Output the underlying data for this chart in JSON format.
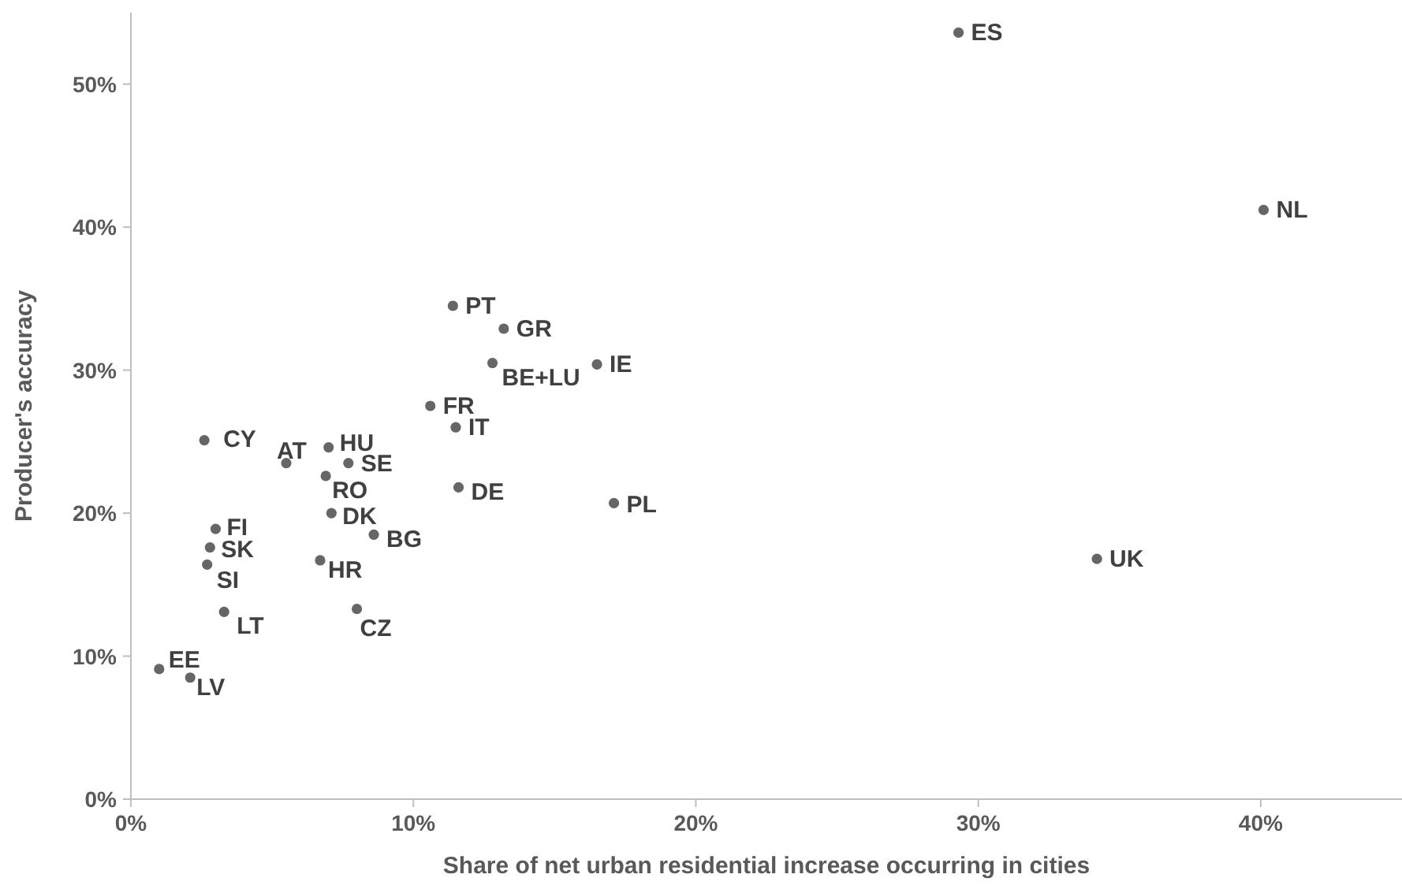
{
  "chart_data": {
    "type": "scatter",
    "xlabel": "Share of net urban residential increase occurring in cities",
    "ylabel": "Producer's accuracy",
    "xlim": [
      0,
      45
    ],
    "ylim": [
      0,
      55
    ],
    "xticks": [
      {
        "value": 0,
        "label": "0%"
      },
      {
        "value": 10,
        "label": "10%"
      },
      {
        "value": 20,
        "label": "20%"
      },
      {
        "value": 30,
        "label": "30%"
      },
      {
        "value": 40,
        "label": "40%"
      }
    ],
    "yticks": [
      {
        "value": 0,
        "label": "0%"
      },
      {
        "value": 10,
        "label": "10%"
      },
      {
        "value": 20,
        "label": "20%"
      },
      {
        "value": 30,
        "label": "30%"
      },
      {
        "value": 40,
        "label": "40%"
      },
      {
        "value": 50,
        "label": "50%"
      }
    ],
    "grid": false,
    "marker": "circle",
    "series": [
      {
        "color": "#666666",
        "x": [
          29.3,
          40.1,
          11.4,
          13.2,
          12.8,
          16.5,
          10.6,
          11.5,
          2.6,
          5.5,
          7.0,
          7.7,
          6.9,
          11.6,
          17.1,
          7.1,
          3.0,
          8.6,
          2.8,
          6.7,
          34.2,
          2.7,
          3.3,
          8.0,
          1.0,
          2.1
        ],
        "values": [
          53.6,
          41.2,
          34.5,
          32.9,
          30.5,
          30.4,
          27.5,
          26.0,
          25.1,
          23.5,
          24.6,
          23.5,
          22.6,
          21.8,
          20.7,
          20.0,
          18.9,
          18.5,
          17.6,
          16.7,
          16.8,
          16.4,
          13.1,
          13.3,
          9.1,
          8.5
        ]
      }
    ],
    "annotations": [
      {
        "text": "ES",
        "x": 29.3,
        "y": 53.6
      },
      {
        "text": "NL",
        "x": 40.1,
        "y": 41.2
      },
      {
        "text": "PT",
        "x": 11.4,
        "y": 34.5
      },
      {
        "text": "GR",
        "x": 13.2,
        "y": 32.9
      },
      {
        "text": "BE+LU",
        "x": 12.8,
        "y": 30.5
      },
      {
        "text": "IE",
        "x": 16.5,
        "y": 30.4
      },
      {
        "text": "FR",
        "x": 10.6,
        "y": 27.5
      },
      {
        "text": "IT",
        "x": 11.5,
        "y": 26.0
      },
      {
        "text": "CY",
        "x": 2.6,
        "y": 25.1
      },
      {
        "text": "AT",
        "x": 5.5,
        "y": 23.5
      },
      {
        "text": "HU",
        "x": 7.0,
        "y": 24.6
      },
      {
        "text": "SE",
        "x": 7.7,
        "y": 23.5
      },
      {
        "text": "RO",
        "x": 6.9,
        "y": 22.6
      },
      {
        "text": "DE",
        "x": 11.6,
        "y": 21.8
      },
      {
        "text": "PL",
        "x": 17.1,
        "y": 20.7
      },
      {
        "text": "DK",
        "x": 7.1,
        "y": 20.0
      },
      {
        "text": "FI",
        "x": 3.0,
        "y": 18.9
      },
      {
        "text": "BG",
        "x": 8.6,
        "y": 18.5
      },
      {
        "text": "SK",
        "x": 2.8,
        "y": 17.6
      },
      {
        "text": "HR",
        "x": 6.7,
        "y": 16.7
      },
      {
        "text": "UK",
        "x": 34.2,
        "y": 16.8
      },
      {
        "text": "SI",
        "x": 2.7,
        "y": 16.4
      },
      {
        "text": "LT",
        "x": 3.3,
        "y": 13.1
      },
      {
        "text": "CZ",
        "x": 8.0,
        "y": 13.3
      },
      {
        "text": "EE",
        "x": 1.0,
        "y": 9.1
      },
      {
        "text": "LV",
        "x": 2.1,
        "y": 8.5
      }
    ]
  }
}
